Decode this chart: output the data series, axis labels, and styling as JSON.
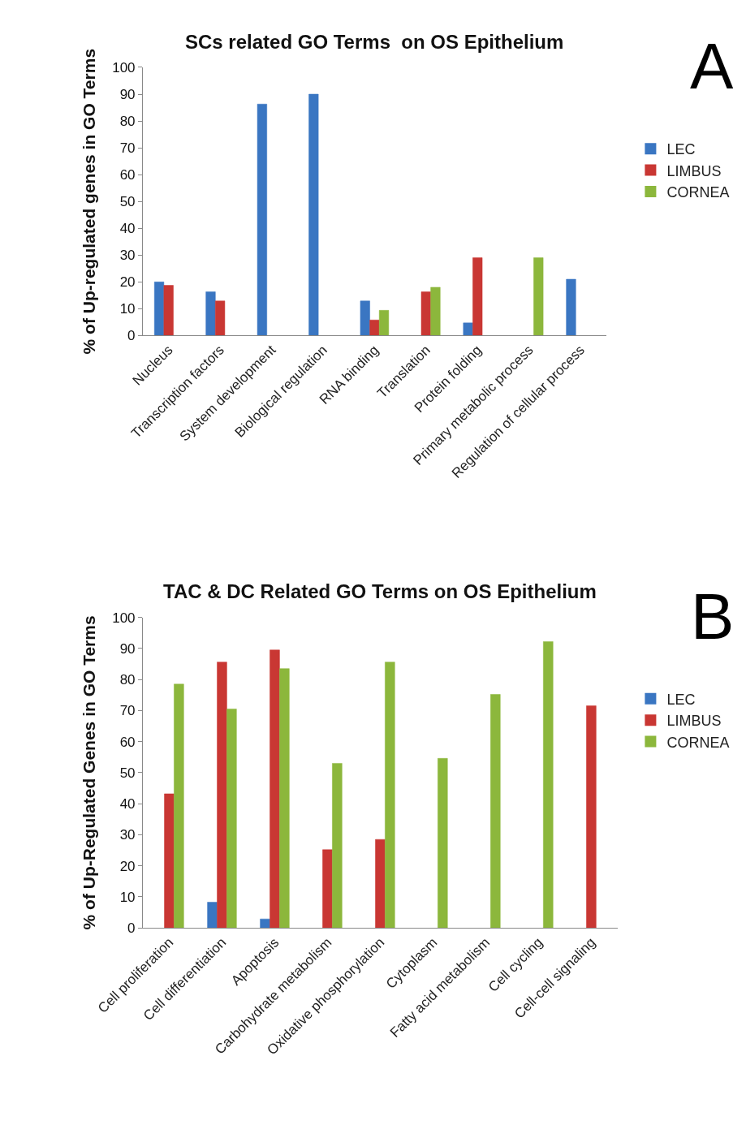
{
  "chart_data": [
    {
      "type": "bar",
      "title": "SCs related GO Terms  on OS Epithelium",
      "ylabel": "% of Up-regulated genes in GO Terms",
      "annotations": [
        "A"
      ],
      "categories": [
        "Nucleus",
        "Transcription factors",
        "System development",
        "Biological regulation",
        "RNA binding",
        "Translation",
        "Protein folding",
        "Primary metabolic process",
        "Regulation of cellular process"
      ],
      "series": [
        {
          "name": "LEC",
          "color": "#3a76c2",
          "values": [
            20,
            16.3,
            86.3,
            90,
            12.9,
            null,
            4.7,
            null,
            21
          ]
        },
        {
          "name": "LIMBUS",
          "color": "#c93733",
          "values": [
            18.7,
            12.9,
            null,
            null,
            5.8,
            16.3,
            29,
            null,
            null
          ]
        },
        {
          "name": "CORNEA",
          "color": "#8cb73c",
          "values": [
            null,
            null,
            null,
            null,
            9.4,
            18,
            null,
            29,
            null
          ]
        }
      ],
      "ylim": [
        0,
        100
      ],
      "yticks": [
        0,
        10,
        20,
        30,
        40,
        50,
        60,
        70,
        80,
        90,
        100
      ],
      "legend": "right"
    },
    {
      "type": "bar",
      "title": "TAC & DC Related GO Terms on OS Epithelium",
      "ylabel": "% of Up-Regulated Genes in GO Terms",
      "annotations": [
        "B"
      ],
      "categories": [
        "Cell proliferation",
        "Cell differentiation",
        "Apoptosis",
        "Carbohydrate metabolism",
        "Oxidative phosphorylation",
        "Cytoplasm",
        "Fatty acid metabolism",
        "Cell cycling",
        "Cell-cell signaling"
      ],
      "series": [
        {
          "name": "LEC",
          "color": "#3a76c2",
          "values": [
            null,
            8.3,
            2.9,
            null,
            null,
            null,
            null,
            null,
            null
          ]
        },
        {
          "name": "LIMBUS",
          "color": "#c93733",
          "values": [
            43.2,
            85.6,
            89.5,
            25.2,
            28.5,
            null,
            null,
            null,
            71.5
          ]
        },
        {
          "name": "CORNEA",
          "color": "#8cb73c",
          "values": [
            78.5,
            70.5,
            83.5,
            53,
            85.6,
            54.6,
            75.2,
            92.2,
            null
          ]
        }
      ],
      "ylim": [
        0,
        100
      ],
      "yticks": [
        0,
        10,
        20,
        30,
        40,
        50,
        60,
        70,
        80,
        90,
        100
      ],
      "legend": "right"
    }
  ]
}
